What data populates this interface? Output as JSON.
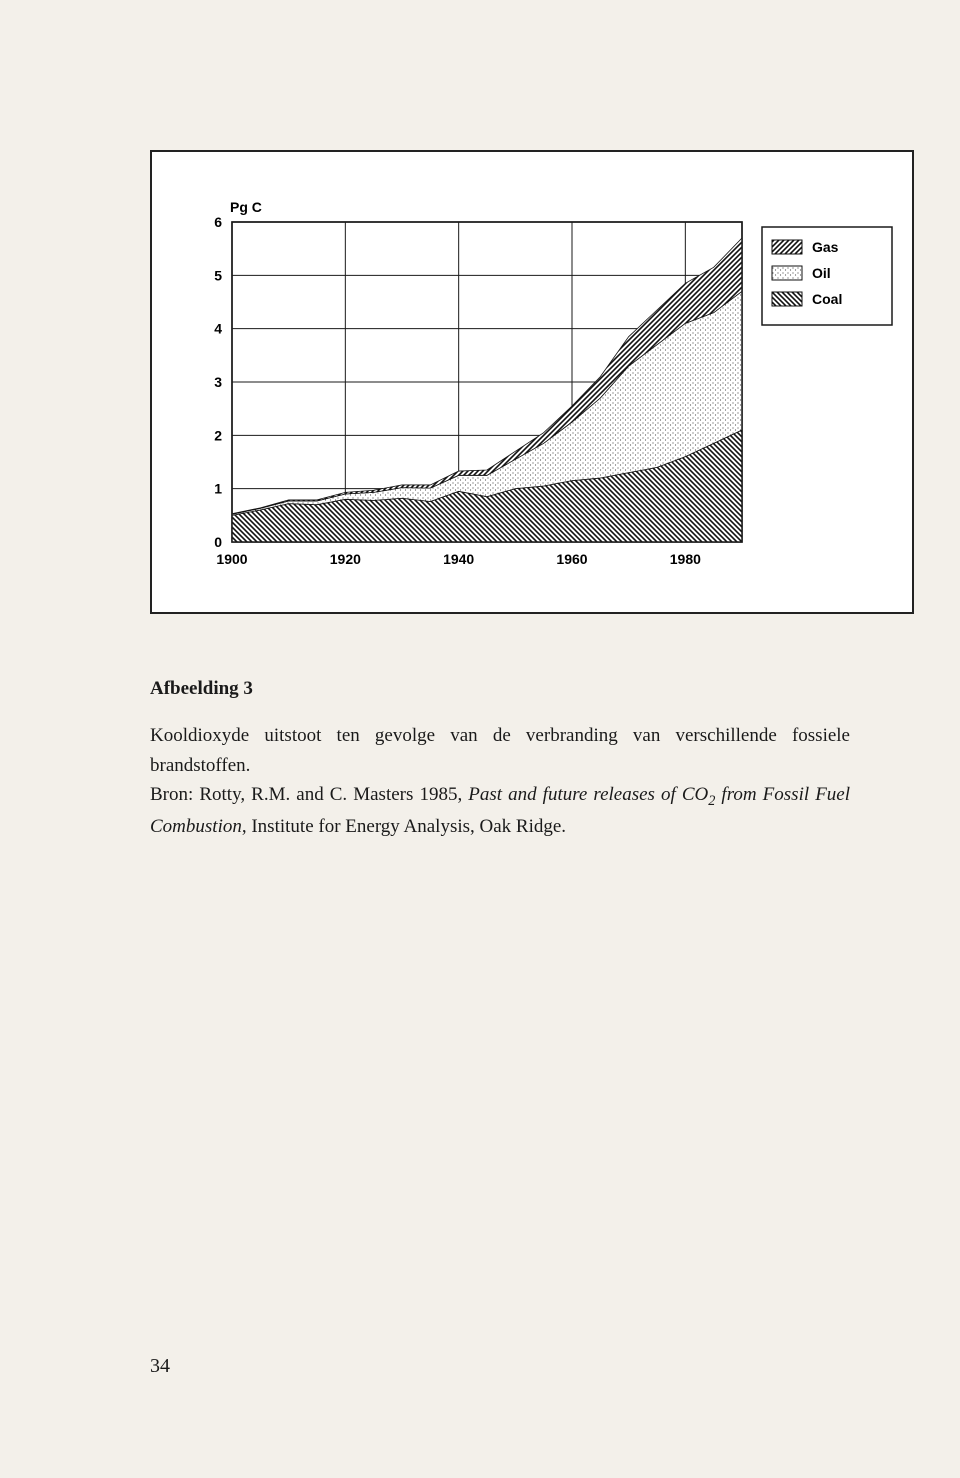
{
  "chart": {
    "type": "area",
    "y_axis_title": "Pg C",
    "y_axis_title_fontsize": 14,
    "x_labels": [
      "1900",
      "1920",
      "1940",
      "1960",
      "1980"
    ],
    "y_labels": [
      "0",
      "1",
      "2",
      "3",
      "4",
      "5",
      "6"
    ],
    "x_range": [
      1900,
      1990
    ],
    "y_range": [
      0,
      6
    ],
    "tick_fontsize": 14,
    "legend": {
      "items": [
        {
          "label": "Gas",
          "swatch": "gas"
        },
        {
          "label": "Oil",
          "swatch": "oil"
        },
        {
          "label": "Coal",
          "swatch": "coal"
        }
      ],
      "font_size": 14
    },
    "series": {
      "years": [
        1900,
        1905,
        1910,
        1915,
        1920,
        1925,
        1930,
        1935,
        1940,
        1945,
        1950,
        1955,
        1960,
        1965,
        1970,
        1975,
        1980,
        1985,
        1990
      ],
      "coal": [
        0.5,
        0.6,
        0.72,
        0.7,
        0.8,
        0.78,
        0.82,
        0.76,
        0.95,
        0.85,
        1.0,
        1.05,
        1.15,
        1.2,
        1.3,
        1.4,
        1.6,
        1.85,
        2.1
      ],
      "oil": [
        0.02,
        0.03,
        0.05,
        0.07,
        0.1,
        0.15,
        0.2,
        0.25,
        0.3,
        0.4,
        0.55,
        0.8,
        1.1,
        1.5,
        2.0,
        2.3,
        2.5,
        2.45,
        2.6
      ],
      "gas": [
        0.01,
        0.01,
        0.02,
        0.02,
        0.03,
        0.04,
        0.05,
        0.06,
        0.08,
        0.1,
        0.15,
        0.2,
        0.3,
        0.4,
        0.55,
        0.65,
        0.75,
        0.85,
        1.0
      ]
    },
    "colors": {
      "axis": "#1a1a1a",
      "grid": "#1a1a1a",
      "background": "#ffffff",
      "legend_border": "#1a1a1a"
    }
  },
  "caption": {
    "title": "Afbeelding 3",
    "para1": "Kooldioxyde uitstoot ten gevolge van de verbranding van verschillende fossiele brandstoffen.",
    "source_prefix": "Bron: Rotty, R.M. and C. Masters 1985, ",
    "source_italic1": "Past and future releases of CO",
    "source_sub": "2",
    "source_italic2": " from Fossil Fuel Combustion",
    "source_suffix": ", Institute for Energy Analysis, Oak Ridge."
  },
  "page_number": "34"
}
